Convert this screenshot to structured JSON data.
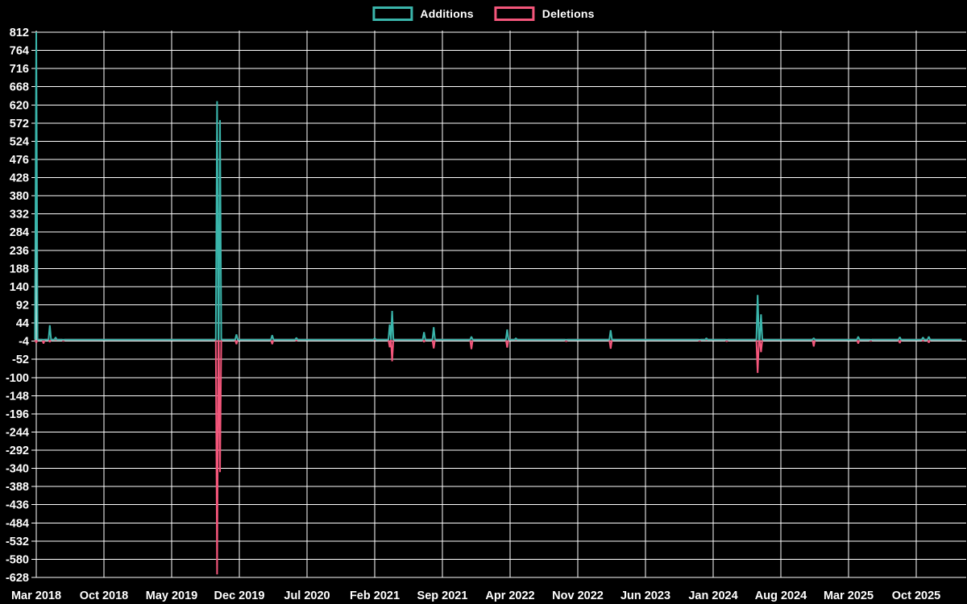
{
  "legend": {
    "additions_label": "Additions",
    "deletions_label": "Deletions"
  },
  "colors": {
    "background": "#000000",
    "grid": "#ffffff",
    "text": "#ffffff",
    "additions": "#3ab5ab",
    "deletions": "#f4567b"
  },
  "chart_data": {
    "type": "line",
    "title": "",
    "xlabel": "",
    "ylabel": "",
    "grid": true,
    "legend_position": "top-center",
    "y_axis": {
      "max": 812,
      "min": -628,
      "step": 48,
      "ticks": [
        812,
        764,
        716,
        668,
        620,
        572,
        524,
        476,
        428,
        380,
        332,
        284,
        236,
        188,
        140,
        92,
        44,
        -4,
        -52,
        -100,
        -148,
        -196,
        -244,
        -292,
        -340,
        -388,
        -436,
        -484,
        -532,
        -580,
        -628
      ]
    },
    "x_axis": {
      "start_label": "Mar 2018",
      "tick_interval_months": 7,
      "tick_labels": [
        "Mar 2018",
        "Oct 2018",
        "May 2019",
        "Dec 2019",
        "Jul 2020",
        "Feb 2021",
        "Sep 2021",
        "Apr 2022",
        "Nov 2022",
        "Jun 2023",
        "Jan 2024",
        "Aug 2024",
        "Mar 2025",
        "Oct 2025"
      ],
      "months_total": 96
    },
    "series": [
      {
        "name": "Additions",
        "color": "#3ab5ab",
        "baseline": 0,
        "end_t": 95.7,
        "points": [
          {
            "t": 0,
            "date": "2018-03",
            "v": 812
          },
          {
            "t": 1.4,
            "date": "2018-04",
            "v": 38
          },
          {
            "t": 2.0,
            "date": "2018-05",
            "v": 6
          },
          {
            "t": 18.7,
            "date": "2019-09",
            "v": 630
          },
          {
            "t": 19.0,
            "date": "2019-10",
            "v": 580
          },
          {
            "t": 20.7,
            "date": "2019-11",
            "v": 14
          },
          {
            "t": 24.4,
            "date": "2020-03",
            "v": 12
          },
          {
            "t": 26.9,
            "date": "2020-05",
            "v": 5
          },
          {
            "t": 35.0,
            "date": "2021-02",
            "v": 4
          },
          {
            "t": 36.55,
            "date": "2021-03",
            "v": 40
          },
          {
            "t": 36.8,
            "date": "2021-04",
            "v": 76
          },
          {
            "t": 40.1,
            "date": "2021-07",
            "v": 20
          },
          {
            "t": 41.1,
            "date": "2021-08",
            "v": 33
          },
          {
            "t": 45.0,
            "date": "2021-12",
            "v": 8
          },
          {
            "t": 48.7,
            "date": "2022-03",
            "v": 27
          },
          {
            "t": 49.6,
            "date": "2022-04",
            "v": 4
          },
          {
            "t": 59.4,
            "date": "2023-02",
            "v": 25
          },
          {
            "t": 69.3,
            "date": "2023-12",
            "v": 4
          },
          {
            "t": 74.6,
            "date": "2024-05",
            "v": 118
          },
          {
            "t": 74.95,
            "date": "2024-06",
            "v": 67
          },
          {
            "t": 80.4,
            "date": "2024-11",
            "v": 4
          },
          {
            "t": 85.0,
            "date": "2025-04",
            "v": 8
          },
          {
            "t": 89.3,
            "date": "2025-08",
            "v": 7
          },
          {
            "t": 91.7,
            "date": "2025-10",
            "v": 6
          },
          {
            "t": 92.3,
            "date": "2025-11",
            "v": 8
          }
        ]
      },
      {
        "name": "Deletions",
        "color": "#f4567b",
        "baseline": 0,
        "end_t": 95.7,
        "points": [
          {
            "t": 0,
            "date": "2018-03",
            "v": -8
          },
          {
            "t": 0.75,
            "date": "2018-03",
            "v": -10
          },
          {
            "t": 1.4,
            "date": "2018-04",
            "v": -6
          },
          {
            "t": 2.8,
            "date": "2018-05",
            "v": -4
          },
          {
            "t": 18.7,
            "date": "2019-09",
            "v": -620
          },
          {
            "t": 19.0,
            "date": "2019-10",
            "v": -350
          },
          {
            "t": 20.7,
            "date": "2019-11",
            "v": -12
          },
          {
            "t": 24.4,
            "date": "2020-03",
            "v": -12
          },
          {
            "t": 26.9,
            "date": "2020-05",
            "v": -3
          },
          {
            "t": 36.55,
            "date": "2021-03",
            "v": -20
          },
          {
            "t": 36.8,
            "date": "2021-04",
            "v": -57
          },
          {
            "t": 40.1,
            "date": "2021-07",
            "v": -6
          },
          {
            "t": 41.1,
            "date": "2021-08",
            "v": -23
          },
          {
            "t": 45.0,
            "date": "2021-12",
            "v": -25
          },
          {
            "t": 48.7,
            "date": "2022-03",
            "v": -21
          },
          {
            "t": 54.8,
            "date": "2022-09",
            "v": -5
          },
          {
            "t": 59.4,
            "date": "2023-02",
            "v": -24
          },
          {
            "t": 68.6,
            "date": "2023-11",
            "v": -4
          },
          {
            "t": 71.4,
            "date": "2024-02",
            "v": -5
          },
          {
            "t": 74.6,
            "date": "2024-05",
            "v": -88
          },
          {
            "t": 74.95,
            "date": "2024-06",
            "v": -33
          },
          {
            "t": 80.4,
            "date": "2024-11",
            "v": -18
          },
          {
            "t": 85.0,
            "date": "2025-04",
            "v": -10
          },
          {
            "t": 86.3,
            "date": "2025-05",
            "v": -4
          },
          {
            "t": 89.3,
            "date": "2025-08",
            "v": -9
          },
          {
            "t": 91.7,
            "date": "2025-10",
            "v": -4
          },
          {
            "t": 92.3,
            "date": "2025-11",
            "v": -8
          }
        ]
      }
    ]
  }
}
